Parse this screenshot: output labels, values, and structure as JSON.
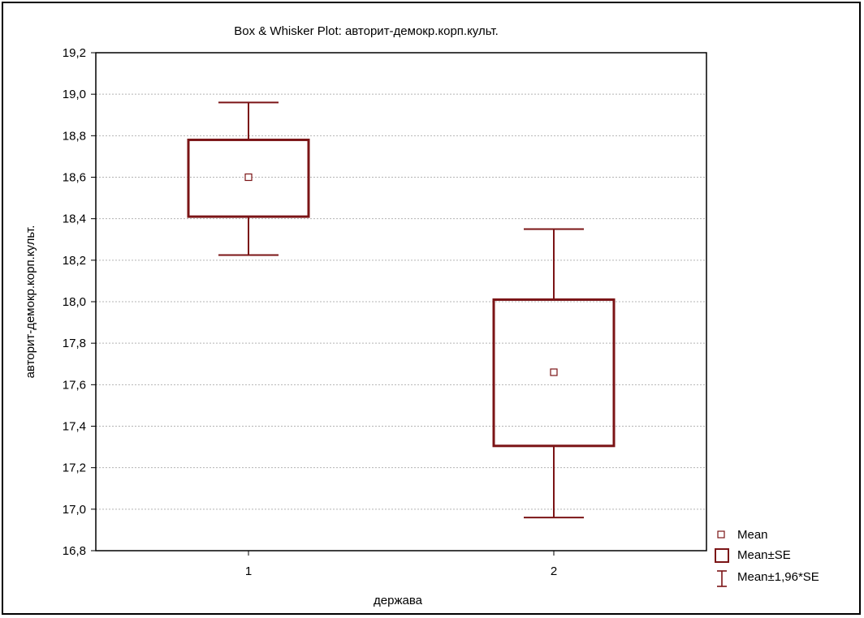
{
  "chart_data": {
    "type": "box-whisker",
    "title": "Box & Whisker Plot: авторит-демокр.корп.культ.",
    "xlabel": "держава",
    "ylabel": "авторит-демокр.корп.культ.",
    "ylim": [
      16.8,
      19.2
    ],
    "yticks": [
      "16,8",
      "17,0",
      "17,2",
      "17,4",
      "17,6",
      "17,8",
      "18,0",
      "18,2",
      "18,4",
      "18,6",
      "18,8",
      "19,0",
      "19,2"
    ],
    "ytick_values": [
      16.8,
      17.0,
      17.2,
      17.4,
      17.6,
      17.8,
      18.0,
      18.2,
      18.4,
      18.6,
      18.8,
      19.0,
      19.2
    ],
    "categories": [
      "1",
      "2"
    ],
    "groups": [
      {
        "category": "1",
        "mean": 18.6,
        "se_low": 18.41,
        "se_high": 18.78,
        "ci_low": 18.225,
        "ci_high": 18.96
      },
      {
        "category": "2",
        "mean": 17.66,
        "se_low": 17.305,
        "se_high": 18.01,
        "ci_low": 16.96,
        "ci_high": 18.35
      }
    ],
    "grid": true,
    "legend_position": "bottom-right",
    "color": "#7b1416",
    "legend": {
      "mean": "Mean",
      "se": "Mean±SE",
      "ci": "Mean±1,96*SE"
    }
  }
}
